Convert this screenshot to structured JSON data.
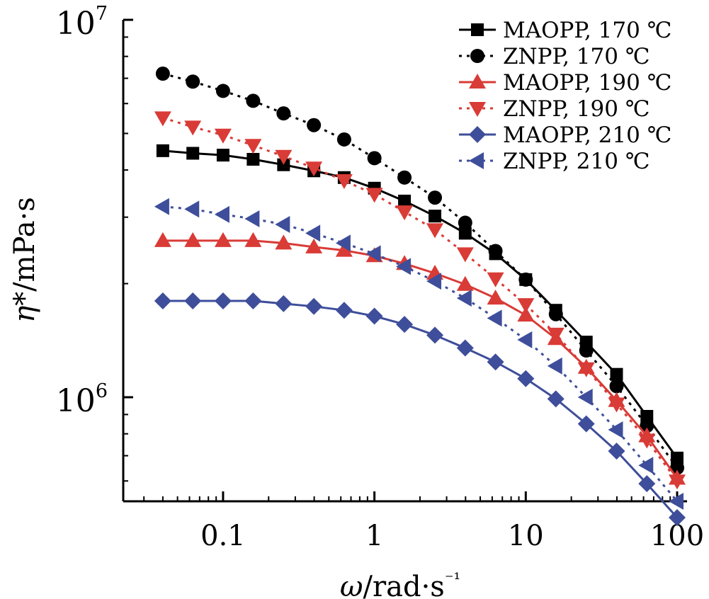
{
  "chart_data": {
    "type": "line",
    "title": "",
    "xlabel": "ω/rad·s⁻¹",
    "ylabel": "η*/mPa·s",
    "x_scale": "log",
    "y_scale": "log",
    "xlim": [
      0.0219,
      100
    ],
    "ylim": [
      530000,
      10000000
    ],
    "x_ticks": [
      0.1,
      1,
      10,
      100
    ],
    "x_tick_labels": [
      "0.1",
      "1",
      "10",
      "100"
    ],
    "y_ticks": [
      1000000,
      10000000
    ],
    "y_tick_labels": [
      {
        "base": "10",
        "exp": "6"
      },
      {
        "base": "10",
        "exp": "7"
      }
    ],
    "grid": false,
    "legend_position": "top-right",
    "x": [
      0.04,
      0.0631,
      0.1,
      0.158,
      0.251,
      0.398,
      0.631,
      1,
      1.58,
      2.51,
      3.98,
      6.31,
      10,
      15.8,
      25.1,
      39.8,
      63.1,
      100
    ],
    "series": [
      {
        "name": "MAOPP, 170 ℃",
        "color": "#000000",
        "marker": "square",
        "line": "solid",
        "values": [
          4500000,
          4430000,
          4380000,
          4270000,
          4130000,
          3980000,
          3820000,
          3580000,
          3310000,
          3020000,
          2720000,
          2400000,
          2050000,
          1700000,
          1400000,
          1150000,
          890000,
          690000
        ]
      },
      {
        "name": "ZNPP, 170 ℃",
        "color": "#000000",
        "marker": "circle",
        "line": "dotted",
        "values": [
          7200000,
          6860000,
          6480000,
          6100000,
          5650000,
          5260000,
          4820000,
          4300000,
          3820000,
          3380000,
          2900000,
          2440000,
          2050000,
          1660000,
          1330000,
          1070000,
          840000,
          650000
        ]
      },
      {
        "name": "MAOPP, 190 ℃",
        "color": "#d93b36",
        "marker": "triangle-up",
        "line": "solid",
        "values": [
          2600000,
          2600000,
          2600000,
          2600000,
          2560000,
          2500000,
          2450000,
          2370000,
          2260000,
          2130000,
          1990000,
          1830000,
          1650000,
          1430000,
          1200000,
          980000,
          790000,
          610000
        ]
      },
      {
        "name": "ZNPP, 190 ℃",
        "color": "#d93b36",
        "marker": "triangle-down",
        "line": "dotted",
        "values": [
          5500000,
          5200000,
          4950000,
          4650000,
          4350000,
          4050000,
          3750000,
          3450000,
          3100000,
          2780000,
          2400000,
          2060000,
          1760000,
          1470000,
          1190000,
          960000,
          770000,
          600000
        ]
      },
      {
        "name": "MAOPP, 210 ℃",
        "color": "#3e4e9a",
        "marker": "diamond",
        "line": "solid",
        "values": [
          1800000,
          1800000,
          1800000,
          1800000,
          1770000,
          1740000,
          1700000,
          1640000,
          1560000,
          1460000,
          1350000,
          1240000,
          1120000,
          990000,
          850000,
          720000,
          590000,
          480000
        ]
      },
      {
        "name": "ZNPP, 210 ℃",
        "color": "#3e4e9a",
        "marker": "triangle-left",
        "line": "dotted",
        "values": [
          3200000,
          3150000,
          3050000,
          2970000,
          2870000,
          2720000,
          2560000,
          2400000,
          2220000,
          2030000,
          1830000,
          1620000,
          1420000,
          1210000,
          1000000,
          820000,
          660000,
          530000
        ]
      }
    ]
  }
}
